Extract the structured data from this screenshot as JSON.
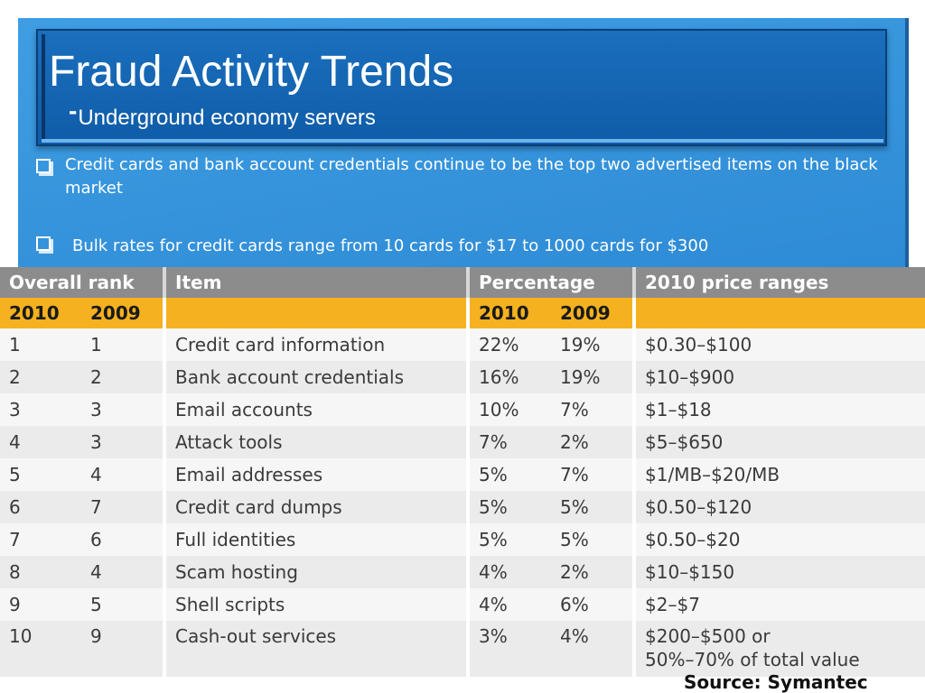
{
  "header": {
    "title": "Fraud Activity Trends",
    "subtitle_prefix": "-",
    "subtitle": "Underground economy servers"
  },
  "bullets": [
    "Credit cards and bank account credentials continue to be the top two advertised items on the black market",
    "Bulk rates for credit cards range from 10 cards for $17 to 1000 cards for $300"
  ],
  "table": {
    "headers": {
      "overall_rank": "Overall rank",
      "item": "Item",
      "percentage": "Percentage",
      "price": "2010 price ranges"
    },
    "years": {
      "y2010": "2010",
      "y2009": "2009"
    },
    "rows": [
      {
        "rank2010": "1",
        "rank2009": "1",
        "item": "Credit card information",
        "pct2010": "22%",
        "pct2009": "19%",
        "price": "$0.30–$100"
      },
      {
        "rank2010": "2",
        "rank2009": "2",
        "item": "Bank account credentials",
        "pct2010": "16%",
        "pct2009": "19%",
        "price": "$10–$900"
      },
      {
        "rank2010": "3",
        "rank2009": "3",
        "item": "Email accounts",
        "pct2010": "10%",
        "pct2009": "7%",
        "price": "$1–$18"
      },
      {
        "rank2010": "4",
        "rank2009": "3",
        "item": "Attack tools",
        "pct2010": "7%",
        "pct2009": "2%",
        "price": "$5–$650"
      },
      {
        "rank2010": "5",
        "rank2009": "4",
        "item": "Email addresses",
        "pct2010": "5%",
        "pct2009": "7%",
        "price": "$1/MB–$20/MB"
      },
      {
        "rank2010": "6",
        "rank2009": "7",
        "item": "Credit card dumps",
        "pct2010": "5%",
        "pct2009": "5%",
        "price": "$0.50–$120"
      },
      {
        "rank2010": "7",
        "rank2009": "6",
        "item": "Full identities",
        "pct2010": "5%",
        "pct2009": "5%",
        "price": "$0.50–$20"
      },
      {
        "rank2010": "8",
        "rank2009": "4",
        "item": "Scam hosting",
        "pct2010": "4%",
        "pct2009": "2%",
        "price": "$10–$150"
      },
      {
        "rank2010": "9",
        "rank2009": "5",
        "item": "Shell scripts",
        "pct2010": "4%",
        "pct2009": "6%",
        "price": "$2–$7"
      },
      {
        "rank2010": "10",
        "rank2009": "9",
        "item": "Cash-out services",
        "pct2010": "3%",
        "pct2009": "4%",
        "price": "$200–$500 or",
        "price_line2": "50%–70% of total value"
      }
    ]
  },
  "source": "Source: Symantec"
}
